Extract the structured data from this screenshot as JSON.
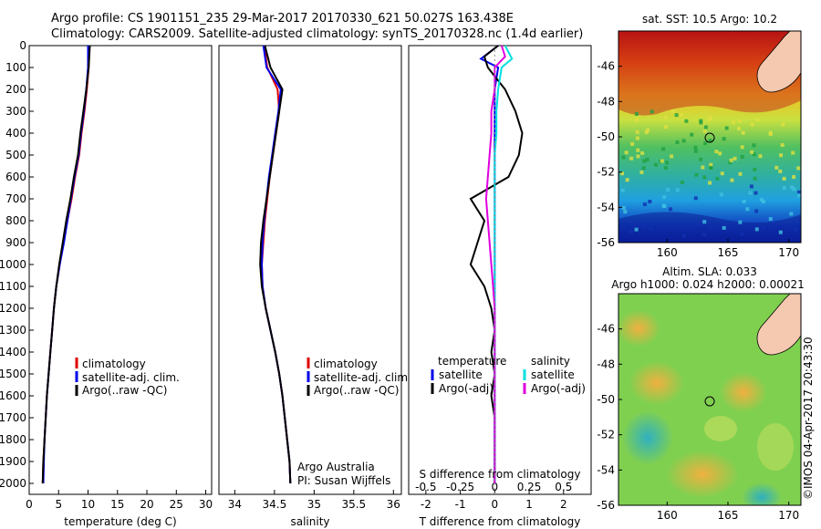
{
  "header": {
    "line1": "Argo profile: CS 1901151_235 29-Mar-2017 20170330_621 50.027S 163.438E",
    "line2": "Climatology: CARS2009. Satellite-adjusted climatology: synTS_20170328.nc (1.4d earlier)"
  },
  "footer": {
    "credit": "©IMOS 04-Apr-2017 20:43:30",
    "institution": "Argo Australia",
    "pi": "PI: Susan Wijffels"
  },
  "colors": {
    "climatology": "#e00000",
    "satellite": "#0000ee",
    "argo": "#000000",
    "salinity_satellite": "#00e0e0",
    "salinity_argo": "#e000e0",
    "land": "#f5c8b0"
  },
  "chart_data": [
    {
      "type": "line",
      "id": "temperature",
      "xlabel": "temperature (deg C)",
      "xlim": [
        0,
        31
      ],
      "ylim": [
        2050,
        0
      ],
      "xticks": [
        0,
        5,
        10,
        15,
        20,
        25,
        30
      ],
      "yticks": [
        0,
        100,
        200,
        300,
        400,
        500,
        600,
        700,
        800,
        900,
        1000,
        1100,
        1200,
        1300,
        1400,
        1500,
        1600,
        1700,
        1800,
        1900,
        2000
      ],
      "legend": [
        "climatology",
        "satellite-adj. clim.",
        "Argo(..raw -QC)"
      ],
      "series": [
        {
          "name": "climatology",
          "color": "#e00000",
          "x": [
            10.2,
            10.1,
            9.8,
            9.4,
            8.9,
            8.5,
            7.8,
            7.2,
            6.5,
            5.8,
            5.2,
            4.6,
            4.2,
            3.9,
            3.6,
            3.3,
            3.0,
            2.8,
            2.6,
            2.4,
            2.3
          ],
          "y": [
            0,
            100,
            200,
            300,
            400,
            500,
            600,
            700,
            800,
            900,
            1000,
            1100,
            1200,
            1300,
            1400,
            1500,
            1600,
            1700,
            1800,
            1900,
            2000
          ]
        },
        {
          "name": "satellite-adj. clim.",
          "color": "#0000ee",
          "x": [
            10.0,
            10.0,
            9.7,
            9.3,
            8.8,
            8.4,
            7.7,
            7.1,
            6.5,
            5.9,
            5.2,
            4.6,
            4.2,
            3.9,
            3.6,
            3.3,
            3.0,
            2.8,
            2.6,
            2.5,
            2.4
          ],
          "y": [
            0,
            100,
            200,
            300,
            400,
            500,
            600,
            700,
            800,
            900,
            1000,
            1100,
            1200,
            1300,
            1400,
            1500,
            1600,
            1700,
            1800,
            1900,
            2000
          ]
        },
        {
          "name": "Argo(..raw -QC)",
          "color": "#000000",
          "x": [
            10.3,
            10.1,
            9.7,
            9.2,
            8.7,
            8.3,
            7.6,
            7.0,
            6.3,
            5.7,
            5.1,
            4.6,
            4.2,
            3.9,
            3.6,
            3.3,
            3.0,
            2.8,
            2.6,
            2.4,
            2.3
          ],
          "y": [
            0,
            100,
            200,
            300,
            400,
            500,
            600,
            700,
            800,
            900,
            1000,
            1100,
            1200,
            1300,
            1400,
            1500,
            1600,
            1700,
            1800,
            1900,
            2000
          ]
        }
      ]
    },
    {
      "type": "line",
      "id": "salinity",
      "xlabel": "salinity",
      "xlim": [
        33.8,
        36.1
      ],
      "ylim": [
        2050,
        0
      ],
      "xticks": [
        34,
        34.5,
        35,
        35.5,
        36
      ],
      "legend": [
        "climatology",
        "satellite-adj. clim.",
        "Argo(..raw -QC)"
      ],
      "series": [
        {
          "name": "climatology",
          "color": "#e00000",
          "x": [
            34.37,
            34.41,
            34.54,
            34.56,
            34.52,
            34.48,
            34.44,
            34.41,
            34.38,
            34.36,
            34.34,
            34.35,
            34.39,
            34.45,
            34.51,
            34.56,
            34.6,
            34.63,
            34.66,
            34.69,
            34.7
          ],
          "y": [
            0,
            100,
            200,
            300,
            400,
            500,
            600,
            700,
            800,
            900,
            1000,
            1100,
            1200,
            1300,
            1400,
            1500,
            1600,
            1700,
            1800,
            1900,
            2000
          ]
        },
        {
          "name": "satellite-adj. clim.",
          "color": "#0000ee",
          "x": [
            34.36,
            34.4,
            34.58,
            34.55,
            34.51,
            34.47,
            34.43,
            34.4,
            34.37,
            34.35,
            34.34,
            34.35,
            34.39,
            34.45,
            34.51,
            34.56,
            34.6,
            34.63,
            34.66,
            34.69,
            34.7
          ],
          "y": [
            0,
            100,
            200,
            300,
            400,
            500,
            600,
            700,
            800,
            900,
            1000,
            1100,
            1200,
            1300,
            1400,
            1500,
            1600,
            1700,
            1800,
            1900,
            2000
          ]
        },
        {
          "name": "Argo(..raw -QC)",
          "color": "#000000",
          "x": [
            34.38,
            34.45,
            34.6,
            34.56,
            34.52,
            34.48,
            34.44,
            34.4,
            34.36,
            34.33,
            34.32,
            34.34,
            34.39,
            34.45,
            34.51,
            34.56,
            34.6,
            34.63,
            34.66,
            34.69,
            34.7
          ],
          "y": [
            0,
            100,
            200,
            300,
            400,
            500,
            600,
            700,
            800,
            900,
            1000,
            1100,
            1200,
            1300,
            1400,
            1500,
            1600,
            1700,
            1800,
            1900,
            2000
          ]
        }
      ]
    },
    {
      "type": "line",
      "id": "differences",
      "xlabel": "T difference from climatology",
      "xlabel_top": "S difference from climatology",
      "xlim": [
        -2.5,
        2.8
      ],
      "ylim": [
        2050,
        0
      ],
      "xticks": [
        -2,
        -1,
        0,
        1,
        2
      ],
      "xticks_s": [
        "-0.5",
        "-0.25",
        "0",
        "0.25",
        "0.5"
      ],
      "legend_title_t": "temperature",
      "legend_title_s": "salinity",
      "legend_t": [
        "satellite",
        "Argo(-adj)"
      ],
      "legend_s": [
        "satellite",
        "Argo(-adj)"
      ],
      "series": [
        {
          "name": "satellite",
          "color": "#0000ee",
          "x": [
            0.1,
            -0.4,
            0.1,
            0.0,
            0.0,
            0.0,
            0.0,
            0.0,
            0.0,
            0.0,
            0.0,
            0.0,
            0.0,
            0.0,
            0.0,
            0.0,
            0.0,
            0.0,
            0.0,
            0.0,
            0.0
          ],
          "y": [
            0,
            60,
            100,
            200,
            300,
            400,
            500,
            600,
            700,
            800,
            900,
            1000,
            1100,
            1200,
            1300,
            1400,
            1500,
            1600,
            1700,
            1800,
            2000
          ]
        },
        {
          "name": "Argo(-adj)",
          "color": "#000000",
          "x": [
            0.1,
            -0.3,
            -0.2,
            0.3,
            0.6,
            0.8,
            0.7,
            0.4,
            -0.7,
            -0.3,
            -0.5,
            -0.7,
            -0.3,
            -0.1,
            0.0,
            -0.1,
            0.0,
            -0.1,
            0.0,
            0.0,
            0.0
          ],
          "y": [
            0,
            50,
            100,
            200,
            300,
            400,
            500,
            600,
            700,
            800,
            900,
            1000,
            1100,
            1200,
            1300,
            1400,
            1500,
            1600,
            1700,
            1800,
            2000
          ]
        },
        {
          "name": "salinity satellite",
          "color": "#00e0e0",
          "x": [
            0.3,
            0.5,
            0.2,
            0.1,
            0.05,
            0.05,
            0.0,
            0.0,
            0.0,
            0.0,
            0.0,
            0.0,
            0.0,
            0.0,
            0.0,
            0.0,
            0.0,
            0.0,
            0.0,
            0.0,
            0.0
          ],
          "y": [
            0,
            60,
            100,
            200,
            300,
            400,
            500,
            600,
            700,
            800,
            900,
            1000,
            1100,
            1200,
            1300,
            1400,
            1500,
            1600,
            1700,
            1800,
            2000
          ]
        },
        {
          "name": "salinity Argo(-adj)",
          "color": "#e000e0",
          "x": [
            0.2,
            0.3,
            0.0,
            0.0,
            -0.1,
            -0.1,
            -0.15,
            -0.2,
            -0.25,
            -0.2,
            -0.15,
            -0.1,
            -0.05,
            0.0,
            0.0,
            0.0,
            0.0,
            0.0,
            0.0,
            0.0,
            0.0
          ],
          "y": [
            0,
            50,
            100,
            200,
            300,
            400,
            500,
            600,
            700,
            800,
            900,
            1000,
            1100,
            1200,
            1300,
            1400,
            1500,
            1600,
            1700,
            1800,
            2000
          ]
        }
      ]
    },
    {
      "type": "heatmap",
      "id": "sst_map",
      "title": "sat. SST: 10.5  Argo: 10.2",
      "xlim": [
        156,
        171
      ],
      "ylim": [
        -56,
        -44
      ],
      "xticks": [
        160,
        165,
        170
      ],
      "yticks": [
        -46,
        -48,
        -50,
        -52,
        -54,
        -56
      ],
      "argo_position": [
        163.438,
        -50.027
      ]
    },
    {
      "type": "heatmap",
      "id": "sla_map",
      "title": "Altim. SLA: 0.033",
      "subtitle": "Argo h1000: 0.024  h2000: 0.00021",
      "xlim": [
        156,
        171
      ],
      "ylim": [
        -56,
        -44
      ],
      "xticks": [
        160,
        165,
        170
      ],
      "yticks": [
        -46,
        -48,
        -50,
        -52,
        -54,
        -56
      ],
      "argo_position": [
        163.438,
        -50.027
      ]
    }
  ]
}
